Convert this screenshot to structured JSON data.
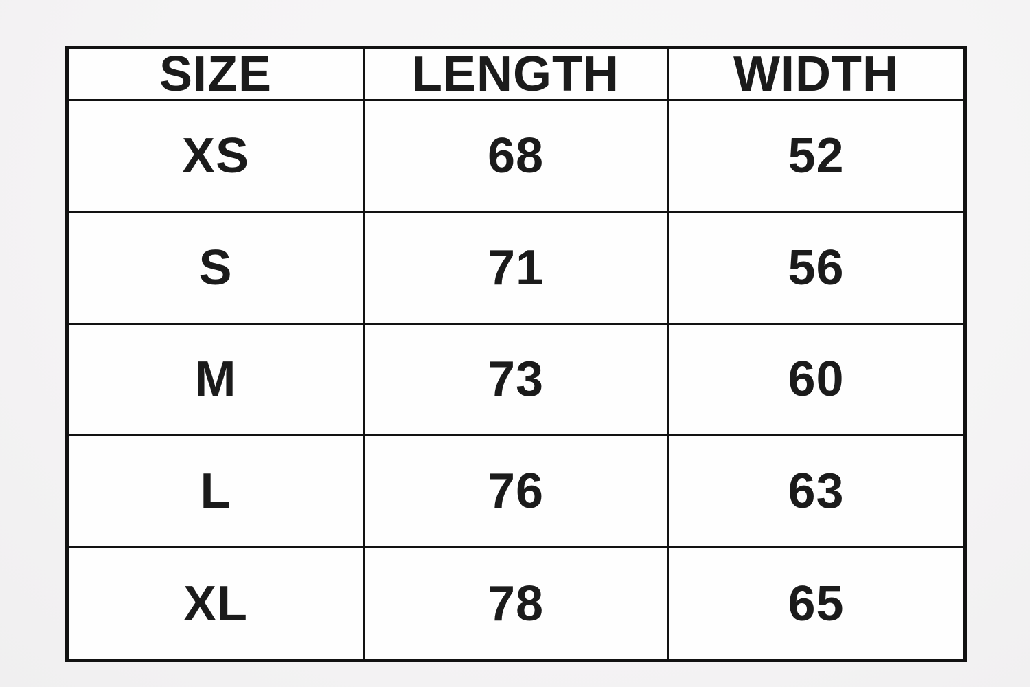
{
  "colors": {
    "bg": "#f5f4f5",
    "cell-bg": "#fefefe",
    "border": "#121212",
    "text": "#1b1b1b"
  },
  "size_chart": {
    "headers": [
      {
        "id": "size",
        "label": "SIZE"
      },
      {
        "id": "length",
        "label": "LENGTH"
      },
      {
        "id": "width",
        "label": "WIDTH"
      }
    ],
    "rows": [
      {
        "size": "XS",
        "length": "68",
        "width": "52"
      },
      {
        "size": "S",
        "length": "71",
        "width": "56"
      },
      {
        "size": "M",
        "length": "73",
        "width": "60"
      },
      {
        "size": "L",
        "length": "76",
        "width": "63"
      },
      {
        "size": "XL",
        "length": "78",
        "width": "65"
      }
    ]
  },
  "chart_data": {
    "type": "table",
    "title": "",
    "columns": [
      "SIZE",
      "LENGTH",
      "WIDTH"
    ],
    "rows": [
      [
        "XS",
        68,
        52
      ],
      [
        "S",
        71,
        56
      ],
      [
        "M",
        73,
        60
      ],
      [
        "L",
        76,
        63
      ],
      [
        "XL",
        78,
        65
      ]
    ]
  }
}
